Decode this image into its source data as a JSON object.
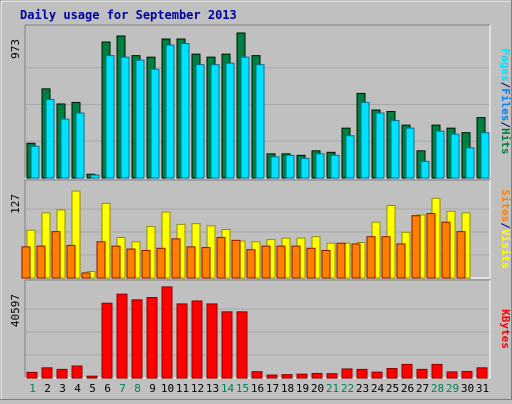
{
  "chart_data": {
    "type": "bar",
    "title": "Daily usage for September 2013",
    "days": [
      "1",
      "2",
      "3",
      "4",
      "5",
      "6",
      "7",
      "8",
      "9",
      "10",
      "11",
      "12",
      "13",
      "14",
      "15",
      "16",
      "17",
      "18",
      "19",
      "20",
      "21",
      "22",
      "23",
      "24",
      "25",
      "26",
      "27",
      "28",
      "29",
      "30",
      "31"
    ],
    "weekend_days": [
      "1",
      "7",
      "8",
      "14",
      "15",
      "21",
      "22",
      "28",
      "29"
    ],
    "panels": [
      {
        "id": "hits_files_pages",
        "ylabel_top_value": "973",
        "ymax": 973,
        "right_labels": [
          "Pages",
          "/",
          "Files",
          "/",
          "Hits"
        ],
        "series": [
          {
            "name": "Hits",
            "color": "#008040",
            "values": [
              230,
              590,
              490,
              500,
              25,
              900,
              940,
              810,
              800,
              920,
              920,
              820,
              800,
              820,
              960,
              810,
              160,
              160,
              150,
              180,
              170,
              330,
              560,
              450,
              440,
              350,
              180,
              350,
              330,
              300,
              400
            ]
          },
          {
            "name": "Files",
            "color": "#0080ff",
            "values": [
              0,
              0,
              0,
              0,
              0,
              0,
              0,
              0,
              0,
              0,
              0,
              0,
              0,
              0,
              0,
              0,
              0,
              0,
              0,
              0,
              0,
              0,
              0,
              0,
              0,
              0,
              0,
              0,
              0,
              0,
              0
            ]
          },
          {
            "name": "Pages",
            "color": "#00e0ff",
            "values": [
              210,
              520,
              390,
              430,
              20,
              810,
              800,
              780,
              720,
              880,
              890,
              750,
              750,
              760,
              800,
              750,
              140,
              150,
              130,
              160,
              150,
              280,
              500,
              430,
              380,
              330,
              110,
              310,
              290,
              200,
              300
            ]
          }
        ]
      },
      {
        "id": "visits_sites",
        "ylabel_top_value": "127",
        "ymax": 127,
        "right_labels": [
          "Sites",
          "/",
          "Visits"
        ],
        "series": [
          {
            "name": "Visits",
            "color": "#ffff00",
            "values": [
              66,
              90,
              94,
              120,
              9,
              103,
              56,
              50,
              71,
              91,
              74,
              75,
              72,
              67,
              51,
              50,
              53,
              55,
              55,
              57,
              48,
              48,
              49,
              77,
              100,
              63,
              87,
              110,
              92,
              90,
              0
            ]
          },
          {
            "name": "Sites",
            "color": "#ff8000",
            "values": [
              43,
              44,
              64,
              45,
              7,
              50,
              44,
              40,
              38,
              41,
              54,
              43,
              42,
              56,
              52,
              39,
              44,
              44,
              44,
              41,
              38,
              48,
              47,
              57,
              57,
              47,
              86,
              89,
              77,
              64,
              0
            ]
          }
        ]
      },
      {
        "id": "kbytes",
        "ylabel_top_value": "40597",
        "ymax": 40597,
        "right_labels": [
          "KBytes"
        ],
        "series": [
          {
            "name": "KBytes",
            "color": "#ff0000",
            "values": [
              2500,
              4500,
              3800,
              5300,
              800,
              33000,
              37000,
              34500,
              35500,
              40200,
              32700,
              34000,
              32700,
              29200,
              29200,
              2800,
              1300,
              1500,
              1700,
              2000,
              1900,
              4000,
              3800,
              2600,
              4200,
              6000,
              3800,
              6000,
              2700,
              2900,
              4500
            ]
          }
        ]
      }
    ]
  }
}
